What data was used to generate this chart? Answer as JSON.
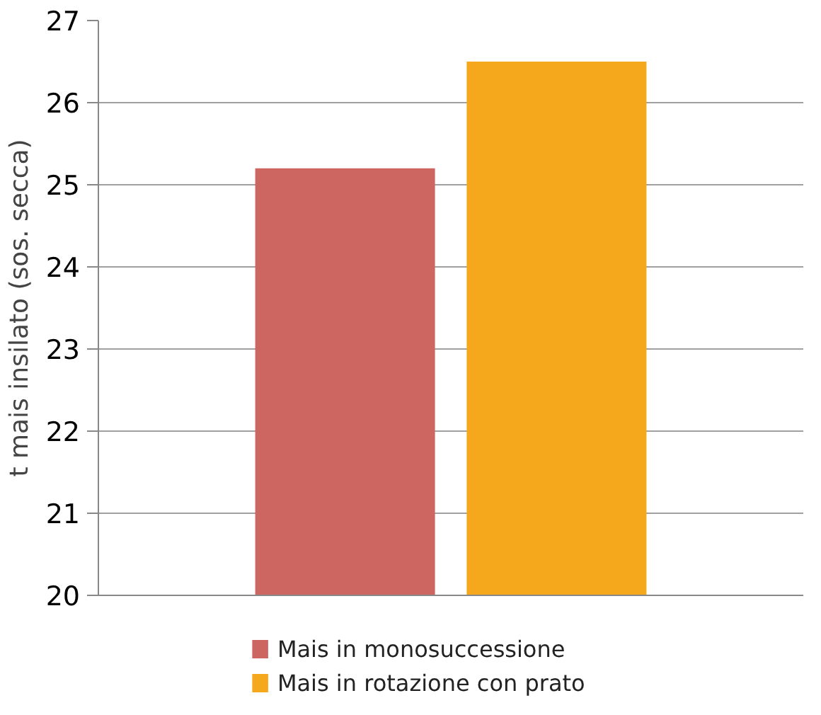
{
  "chart_data": {
    "type": "bar",
    "ylabel": "t mais insilato (sos. secca)",
    "categories": [
      null
    ],
    "series": [
      {
        "name": "Mais in monosuccessione",
        "color": "#cd6560",
        "values": [
          25.2
        ]
      },
      {
        "name": "Mais in rotazione con prato",
        "color": "#f5a81c",
        "values": [
          26.5
        ]
      }
    ],
    "ylim": [
      20,
      27
    ],
    "yticks": [
      20,
      21,
      22,
      23,
      24,
      25,
      26,
      27
    ],
    "grid": "y",
    "legend": "bottom left"
  }
}
